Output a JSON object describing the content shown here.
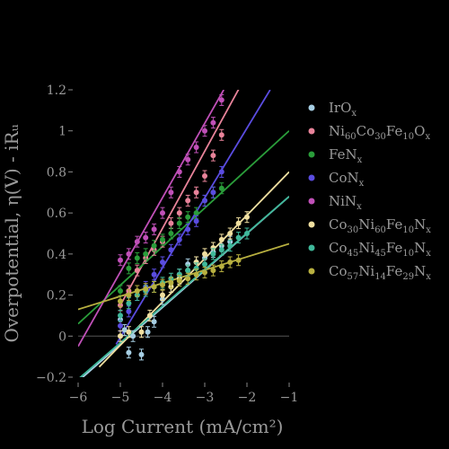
{
  "chart_data": {
    "type": "scatter",
    "xlabel": "Log Current (mA/cm²)",
    "ylabel": "Overpotential, η(V) - iRᵤ",
    "xlim": [
      -6,
      -1
    ],
    "ylim": [
      -0.2,
      1.2
    ],
    "xticks": [
      -6,
      -5,
      -4,
      -3,
      -2,
      -1
    ],
    "yticks": [
      -0.2,
      0,
      0.2,
      0.4,
      0.6,
      0.8,
      1.0,
      1.2
    ],
    "xtick_labels": [
      "−6",
      "−5",
      "−4",
      "−3",
      "−2",
      "−1"
    ],
    "ytick_labels": [
      "−0.2",
      "0",
      "0.2",
      "0.4",
      "0.6",
      "0.8",
      "1",
      "1.2"
    ],
    "grid": false,
    "legend_position": "right",
    "series": [
      {
        "name": "IrOx",
        "legend_parts": [
          [
            "IrO",
            ""
          ],
          [
            "x",
            "sub"
          ]
        ],
        "color": "#a6cee3",
        "x": [
          -5.0,
          -4.9,
          -4.8,
          -4.7,
          -4.5,
          -4.35,
          -4.2,
          -4.0,
          -3.8,
          -3.6,
          -3.4,
          -3.2,
          -3.0,
          -2.8,
          -2.6,
          -2.4
        ],
        "y": [
          0.08,
          0.03,
          -0.08,
          0.0,
          -0.09,
          0.02,
          0.07,
          0.18,
          0.24,
          0.3,
          0.35,
          0.36,
          0.38,
          0.41,
          0.44,
          0.46
        ],
        "line": [
          [
            -6,
            -0.22
          ],
          [
            -1,
            0.68
          ]
        ]
      },
      {
        "name": "Ni60Co30Fe10Ox",
        "legend_parts": [
          [
            "Ni",
            ""
          ],
          [
            "60",
            "sub"
          ],
          [
            "Co",
            ""
          ],
          [
            "30",
            "sub"
          ],
          [
            "Fe",
            ""
          ],
          [
            "10",
            "sub"
          ],
          [
            "O",
            ""
          ],
          [
            "x",
            "sub"
          ]
        ],
        "color": "#e8839a",
        "x": [
          -5.0,
          -4.8,
          -4.6,
          -4.4,
          -4.2,
          -4.0,
          -3.8,
          -3.6,
          -3.4,
          -3.2,
          -3.0,
          -2.8,
          -2.6
        ],
        "y": [
          0.15,
          0.22,
          0.32,
          0.38,
          0.42,
          0.46,
          0.55,
          0.6,
          0.66,
          0.7,
          0.78,
          0.88,
          0.98
        ],
        "line": [
          [
            -5.0,
            0.15
          ],
          [
            -2.15,
            1.22
          ]
        ]
      },
      {
        "name": "FeNx",
        "legend_parts": [
          [
            "FeN",
            ""
          ],
          [
            "x",
            "sub"
          ]
        ],
        "color": "#2a9d3a",
        "x": [
          -5.0,
          -4.8,
          -4.6,
          -4.4,
          -4.2,
          -4.0,
          -3.8,
          -3.6,
          -3.4,
          -3.2,
          -3.0,
          -2.8,
          -2.6
        ],
        "y": [
          0.22,
          0.33,
          0.38,
          0.4,
          0.44,
          0.47,
          0.5,
          0.55,
          0.58,
          0.6,
          0.66,
          0.7,
          0.72
        ],
        "line": [
          [
            -6,
            0.06
          ],
          [
            -1,
            1.0
          ]
        ]
      },
      {
        "name": "CoNx",
        "legend_parts": [
          [
            "CoN",
            ""
          ],
          [
            "x",
            "sub"
          ]
        ],
        "color": "#5a4ce0",
        "x": [
          -5.0,
          -4.8,
          -4.6,
          -4.4,
          -4.2,
          -4.0,
          -3.8,
          -3.6,
          -3.4,
          -3.2,
          -3.0,
          -2.8,
          -2.6
        ],
        "y": [
          0.05,
          0.12,
          0.2,
          0.24,
          0.3,
          0.36,
          0.42,
          0.47,
          0.52,
          0.56,
          0.66,
          0.7,
          0.8
        ],
        "line": [
          [
            -5.1,
            -0.04
          ],
          [
            -1.45,
            1.2
          ]
        ]
      },
      {
        "name": "NiNx",
        "legend_parts": [
          [
            "NiN",
            ""
          ],
          [
            "x",
            "sub"
          ]
        ],
        "color": "#c050b8",
        "x": [
          -5.0,
          -4.8,
          -4.6,
          -4.4,
          -4.2,
          -4.0,
          -3.8,
          -3.6,
          -3.4,
          -3.2,
          -3.0,
          -2.8,
          -2.6
        ],
        "y": [
          0.37,
          0.4,
          0.46,
          0.48,
          0.52,
          0.6,
          0.7,
          0.8,
          0.86,
          0.92,
          1.0,
          1.04,
          1.15
        ],
        "line": [
          [
            -6,
            -0.05
          ],
          [
            -2.55,
            1.2
          ]
        ]
      },
      {
        "name": "Co30Ni60Fe10Nx",
        "legend_parts": [
          [
            "Co",
            ""
          ],
          [
            "30",
            "sub"
          ],
          [
            "Ni",
            ""
          ],
          [
            "60",
            "sub"
          ],
          [
            "Fe",
            ""
          ],
          [
            "10",
            "sub"
          ],
          [
            "N",
            ""
          ],
          [
            "x",
            "sub"
          ]
        ],
        "color": "#f0dfa0",
        "x": [
          -5.0,
          -4.8,
          -4.5,
          -4.3,
          -4.0,
          -3.8,
          -3.6,
          -3.4,
          -3.2,
          -3.0,
          -2.8,
          -2.6,
          -2.4,
          -2.2,
          -2.0
        ],
        "y": [
          0.0,
          0.02,
          0.02,
          0.1,
          0.2,
          0.24,
          0.28,
          0.32,
          0.36,
          0.4,
          0.43,
          0.47,
          0.5,
          0.55,
          0.58
        ],
        "line": [
          [
            -5.5,
            -0.15
          ],
          [
            -1,
            0.8
          ]
        ]
      },
      {
        "name": "Co45Ni45Fe10Nx",
        "legend_parts": [
          [
            "Co",
            ""
          ],
          [
            "45",
            "sub"
          ],
          [
            "Ni",
            ""
          ],
          [
            "45",
            "sub"
          ],
          [
            "Fe",
            ""
          ],
          [
            "10",
            "sub"
          ],
          [
            "N",
            ""
          ],
          [
            "x",
            "sub"
          ]
        ],
        "color": "#3fb89a",
        "x": [
          -5.0,
          -4.8,
          -4.6,
          -4.4,
          -4.2,
          -4.0,
          -3.8,
          -3.6,
          -3.4,
          -3.2,
          -3.0,
          -2.8,
          -2.6,
          -2.4,
          -2.2,
          -2.0
        ],
        "y": [
          0.1,
          0.16,
          0.2,
          0.22,
          0.24,
          0.26,
          0.28,
          0.3,
          0.32,
          0.33,
          0.35,
          0.4,
          0.42,
          0.44,
          0.48,
          0.5
        ],
        "line": [
          [
            -6,
            -0.21
          ],
          [
            -1,
            0.68
          ]
        ]
      },
      {
        "name": "Co57Ni14Fe29Nx",
        "legend_parts": [
          [
            "Co",
            ""
          ],
          [
            "57",
            "sub"
          ],
          [
            "Ni",
            ""
          ],
          [
            "14",
            "sub"
          ],
          [
            "Fe",
            ""
          ],
          [
            "29",
            "sub"
          ],
          [
            "N",
            ""
          ],
          [
            "x",
            "sub"
          ]
        ],
        "color": "#b8b040",
        "x": [
          -5.0,
          -4.8,
          -4.6,
          -4.4,
          -4.2,
          -4.0,
          -3.8,
          -3.6,
          -3.4,
          -3.2,
          -3.0,
          -2.8,
          -2.6,
          -2.4,
          -2.2
        ],
        "y": [
          0.17,
          0.2,
          0.22,
          0.23,
          0.24,
          0.25,
          0.26,
          0.27,
          0.28,
          0.3,
          0.31,
          0.32,
          0.34,
          0.36,
          0.37
        ],
        "line": [
          [
            -6,
            0.13
          ],
          [
            -1,
            0.45
          ]
        ]
      }
    ]
  }
}
